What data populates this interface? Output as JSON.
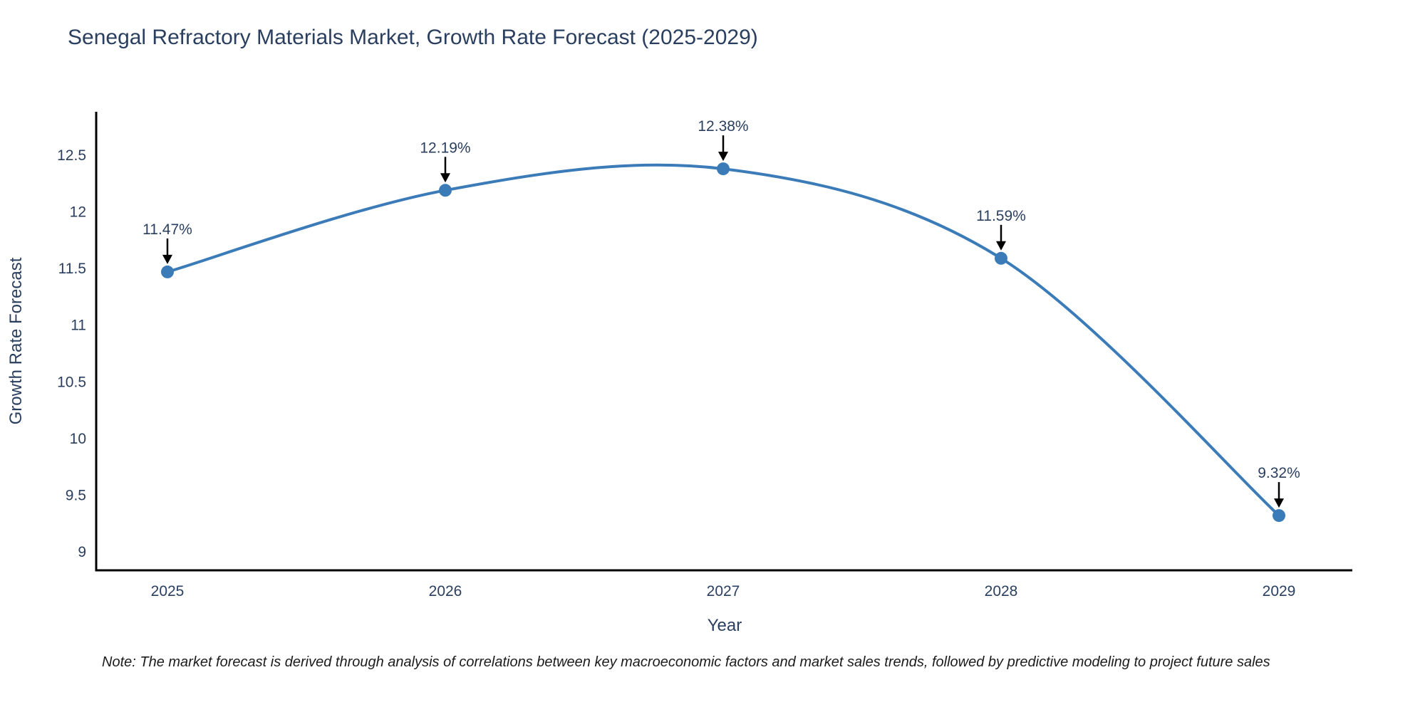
{
  "title": "Senegal Refractory Materials Market, Growth Rate Forecast (2025-2029)",
  "note": "Note: The market forecast is derived through analysis of correlations between key macroeconomic factors and market sales trends, followed by predictive modeling to project future sales",
  "colors": {
    "title_text": "#2a3f5f",
    "axis_text": "#2a3f5f",
    "axis_spine": "#000000",
    "series_line": "#3b7cb8",
    "annotation_arrow": "#000000",
    "note_text": "#1c1c1c",
    "background": "#ffffff"
  },
  "chart_data": {
    "type": "line",
    "title": "Senegal Refractory Materials Market, Growth Rate Forecast (2025-2029)",
    "xlabel": "Year",
    "ylabel": "Growth Rate Forecast",
    "x": [
      2025,
      2026,
      2027,
      2028,
      2029
    ],
    "x_ticks": [
      "2025",
      "2026",
      "2027",
      "2028",
      "2029"
    ],
    "series": [
      {
        "name": "Growth Rate Forecast",
        "values": [
          11.47,
          12.19,
          12.38,
          11.59,
          9.32
        ]
      }
    ],
    "point_labels": [
      "11.47%",
      "12.19%",
      "12.38%",
      "11.59%",
      "9.32%"
    ],
    "y_ticks": [
      12.5,
      12,
      11.5,
      11,
      10.5,
      10,
      9.5,
      9
    ],
    "ylim": [
      8.82,
      12.88
    ],
    "xlim": [
      2024.74,
      2029.26
    ],
    "grid": false,
    "legend_position": "none",
    "curve": "spline",
    "line_color": "#3b7cb8",
    "marker_color": "#3b7cb8",
    "annotations_have_arrows": true
  }
}
